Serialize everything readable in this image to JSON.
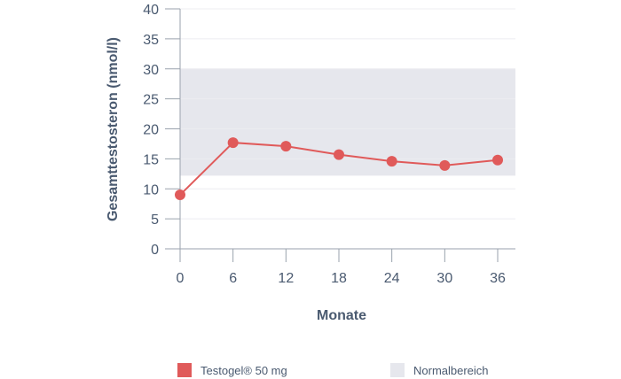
{
  "chart_data": {
    "type": "line",
    "x": [
      0,
      6,
      12,
      18,
      24,
      30,
      36
    ],
    "series": [
      {
        "name": "Testogel® 50 mg",
        "values": [
          9.0,
          17.7,
          17.1,
          15.7,
          14.6,
          13.9,
          14.8
        ]
      }
    ],
    "normal_range": [
      12.2,
      30
    ],
    "xlabel": "Monate",
    "ylabel": "Gesamttestosteron (nmol/l)",
    "xticks": [
      "0",
      "6",
      "12",
      "18",
      "24",
      "30",
      "36"
    ],
    "yticks": [
      "0",
      "5",
      "10",
      "15",
      "20",
      "25",
      "30",
      "35",
      "40"
    ],
    "xlim": [
      0,
      36
    ],
    "ylim": [
      0,
      40
    ],
    "grid": true,
    "legend": {
      "position": "bottom",
      "items": [
        {
          "label": "Testogel® 50 mg",
          "color": "#e05a5a"
        },
        {
          "label": "Normalbereich",
          "color": "#e6e7ed"
        }
      ]
    },
    "colors": {
      "series": "#e05a5a",
      "band": "#e6e7ed",
      "axis": "#9aa2ad",
      "text": "#4a5a70"
    }
  }
}
